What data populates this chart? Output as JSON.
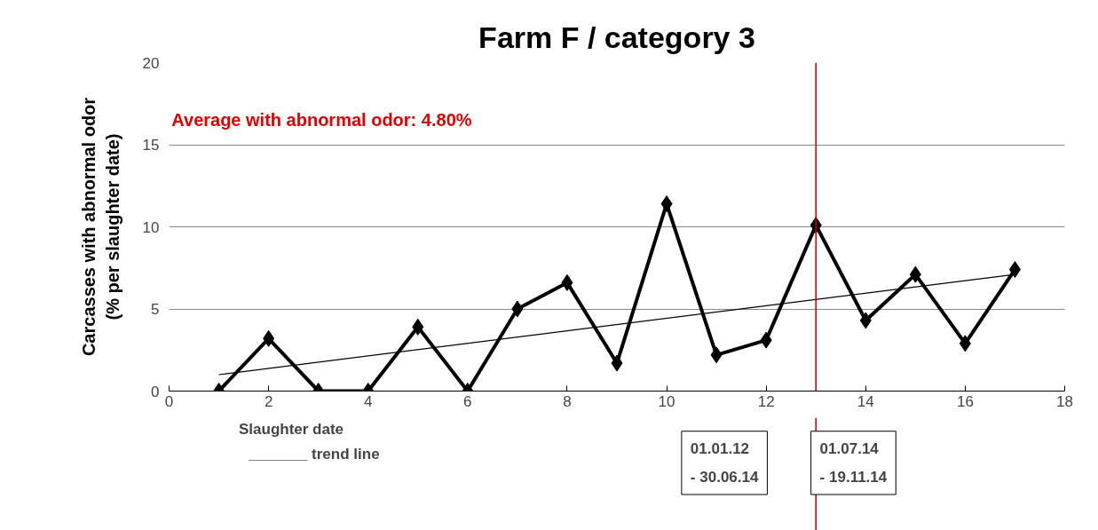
{
  "chart_data": {
    "type": "line",
    "title": "Farm F / category 3",
    "xlabel": "Slaughter date",
    "ylabel": "Carcasses with abnormal odor (% per slaughter date)",
    "series": [
      {
        "color": "#000000",
        "marker": "diamond",
        "x": [
          1,
          2,
          3,
          4,
          5,
          6,
          7,
          8,
          9,
          10,
          11,
          12,
          13,
          14,
          15,
          16,
          17
        ],
        "values": [
          0,
          3.2,
          0,
          0,
          3.9,
          0,
          5.0,
          6.6,
          1.7,
          11.4,
          2.2,
          3.1,
          10.1,
          4.3,
          7.1,
          2.9,
          7.4
        ]
      },
      {
        "color": "#000000",
        "marker": "none",
        "x": [
          1,
          17
        ],
        "values": [
          1.0,
          7.1
        ]
      }
    ],
    "xlim": [
      0,
      18
    ],
    "xticks": [
      0,
      2,
      4,
      6,
      8,
      10,
      12,
      14,
      16,
      18
    ],
    "ylim": [
      0,
      20
    ],
    "yticks": [
      0,
      5,
      10,
      15,
      20
    ],
    "grid": "y",
    "ref_lines": [
      {
        "axis": "x",
        "value": 13,
        "color": "#c00000"
      }
    ],
    "annotations": [
      "Average with abnormal odor:  4.80%",
      "_______ trend line",
      "01.01.12\n- 30.06.14",
      "01.07.14\n- 19.11.14"
    ]
  }
}
